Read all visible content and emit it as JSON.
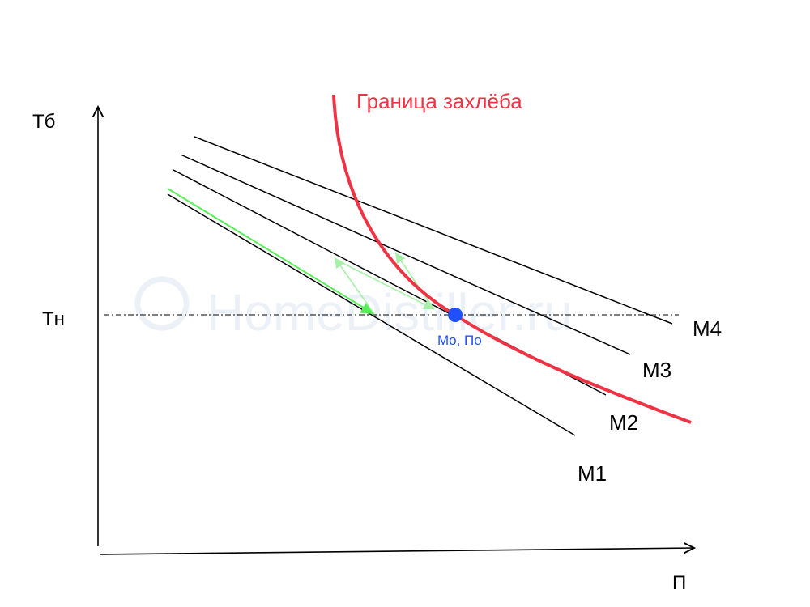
{
  "watermark": "HomeDistiller.ru",
  "axes": {
    "y_label": "Тб",
    "x_label": "П",
    "ref_label": "Тн"
  },
  "lines": [
    {
      "id": "m1",
      "label": "M1"
    },
    {
      "id": "m2",
      "label": "M2"
    },
    {
      "id": "m3",
      "label": "M3"
    },
    {
      "id": "m4",
      "label": "M4"
    }
  ],
  "boundary": {
    "label": "Граница захлёба",
    "color": "#ee3344"
  },
  "operating_point": {
    "label": "Mo, По",
    "color": "#1f4fff"
  },
  "colors": {
    "axis": "#000000",
    "lines": "#000000",
    "trajectory": "#55ee55",
    "trajectory_light": "#a8f0a8"
  }
}
